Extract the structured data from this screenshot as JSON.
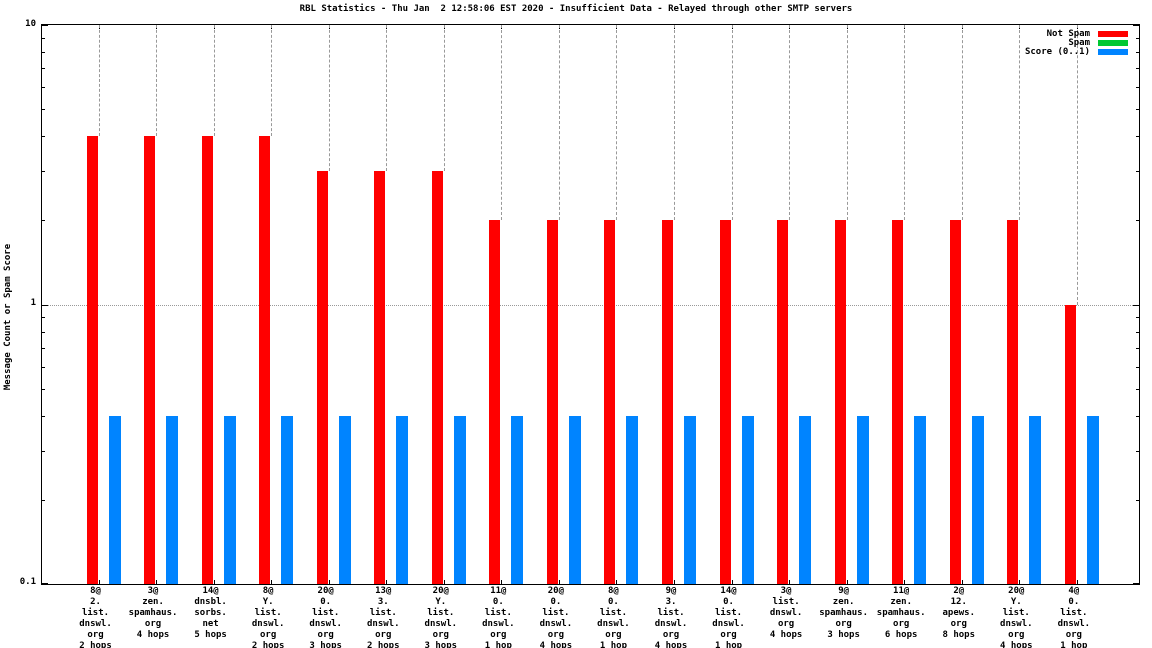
{
  "page": {
    "background": "#ffffff",
    "border_color": "#000000",
    "grid_color": "#999999"
  },
  "chart_data": {
    "type": "bar",
    "title": "RBL Statistics - Thu Jan  2 12:58:06 EST 2020 - Insufficient Data - Relayed through other SMTP servers",
    "ylabel": "Message Count or Spam Score",
    "xlabel": "",
    "yscale": "log",
    "ylim": [
      0.1,
      10
    ],
    "yticks_major": [
      0.1,
      1,
      10
    ],
    "ytick_labels": [
      "10",
      "1",
      "0.1"
    ],
    "grid": {
      "horizontal_dotted_at": 1,
      "vertical_dashed_per_category": true
    },
    "legend_position": "top-right-inside",
    "categories": [
      [
        "8@",
        "2.",
        "list.",
        "dnswl.",
        "org",
        "2 hops"
      ],
      [
        "3@",
        "zen.",
        "spamhaus.",
        "org",
        "4 hops"
      ],
      [
        "14@",
        "dnsbl.",
        "sorbs.",
        "net",
        "5 hops"
      ],
      [
        "8@",
        "Y.",
        "list.",
        "dnswl.",
        "org",
        "2 hops"
      ],
      [
        "20@",
        "0.",
        "list.",
        "dnswl.",
        "org",
        "3 hops"
      ],
      [
        "13@",
        "3.",
        "list.",
        "dnswl.",
        "org",
        "2 hops"
      ],
      [
        "20@",
        "Y.",
        "list.",
        "dnswl.",
        "org",
        "3 hops"
      ],
      [
        "11@",
        "0.",
        "list.",
        "dnswl.",
        "org",
        "1 hop"
      ],
      [
        "20@",
        "0.",
        "list.",
        "dnswl.",
        "org",
        "4 hops"
      ],
      [
        "8@",
        "0.",
        "list.",
        "dnswl.",
        "org",
        "1 hop"
      ],
      [
        "9@",
        "3.",
        "list.",
        "dnswl.",
        "org",
        "4 hops"
      ],
      [
        "14@",
        "0.",
        "list.",
        "dnswl.",
        "org",
        "1 hop"
      ],
      [
        "3@",
        "list.",
        "dnswl.",
        "org",
        "4 hops"
      ],
      [
        "9@",
        "zen.",
        "spamhaus.",
        "org",
        "3 hops"
      ],
      [
        "11@",
        "zen.",
        "spamhaus.",
        "org",
        "6 hops"
      ],
      [
        "2@",
        "12.",
        "apews.",
        "org",
        "8 hops"
      ],
      [
        "20@",
        "Y.",
        "list.",
        "dnswl.",
        "org",
        "4 hops"
      ],
      [
        "4@",
        "0.",
        "list.",
        "dnswl.",
        "org",
        "1 hop"
      ]
    ],
    "series": [
      {
        "name": "Not Spam",
        "color": "#FF0000",
        "values": [
          4,
          4,
          4,
          4,
          3,
          3,
          3,
          2,
          2,
          2,
          2,
          2,
          2,
          2,
          2,
          2,
          2,
          1
        ]
      },
      {
        "name": "Spam",
        "color": "#00C832",
        "values": [
          0,
          0,
          0,
          0,
          0,
          0,
          0,
          0,
          0,
          0,
          0,
          0,
          0,
          0,
          0,
          0,
          0,
          0
        ]
      },
      {
        "name": "Score (0..1)",
        "color": "#0084FF",
        "values": [
          0.4,
          0.4,
          0.4,
          0.4,
          0.4,
          0.4,
          0.4,
          0.4,
          0.4,
          0.4,
          0.4,
          0.4,
          0.4,
          0.4,
          0.4,
          0.4,
          0.4,
          0.4
        ]
      }
    ]
  }
}
